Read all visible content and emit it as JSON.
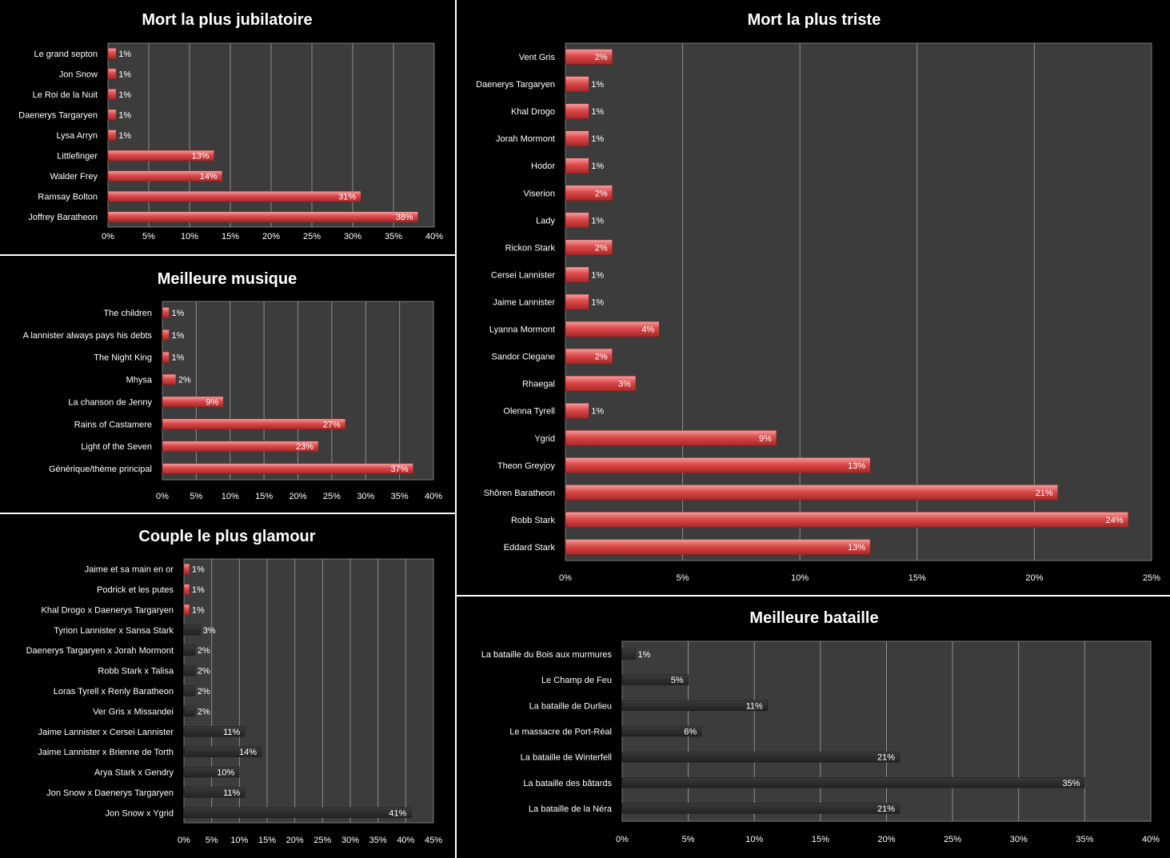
{
  "chart_data": [
    {
      "id": "jubilatoire",
      "type": "bar",
      "orientation": "horizontal",
      "title": "Mort la plus jubilatoire",
      "categories": [
        "Le grand septon",
        "Jon Snow",
        "Le Roi de la Nuit",
        "Daenerys Targaryen",
        "Lysa Arryn",
        "Littlefinger",
        "Walder Frey",
        "Ramsay  Bolton",
        "Joffrey Baratheon"
      ],
      "values": [
        1,
        1,
        1,
        1,
        1,
        13,
        14,
        31,
        38
      ],
      "labels": [
        "1%",
        "1%",
        "1%",
        "1%",
        "1%",
        "13%",
        "14%",
        "31%",
        "38%"
      ],
      "xlim": [
        0,
        40
      ],
      "ticks": [
        "0%",
        "5%",
        "10%",
        "15%",
        "20%",
        "25%",
        "30%",
        "35%",
        "40%"
      ],
      "bar_color": "#d94b4b",
      "grid": true,
      "legend": "none"
    },
    {
      "id": "triste",
      "type": "bar",
      "orientation": "horizontal",
      "title": "Mort la plus triste",
      "categories": [
        "Vent Gris",
        "Daenerys Targaryen",
        "Khal Drogo",
        "Jorah Mormont",
        "Hodor",
        "Viserion",
        "Lady",
        "Rickon Stark",
        "Cersei Lannister",
        "Jaime Lannister",
        "Lyanna Mormont",
        "Sandor Clegane",
        "Rhaegal",
        "Olenna Tyrell",
        "Ygrid",
        "Theon Greyjoy",
        "Shôren Baratheon",
        "Robb Stark",
        "Eddard Stark"
      ],
      "values": [
        2,
        1,
        1,
        1,
        1,
        2,
        1,
        2,
        1,
        1,
        4,
        2,
        3,
        1,
        9,
        13,
        21,
        24,
        13
      ],
      "labels": [
        "2%",
        "1%",
        "1%",
        "1%",
        "1%",
        "2%",
        "1%",
        "2%",
        "1%",
        "1%",
        "4%",
        "2%",
        "3%",
        "1%",
        "9%",
        "13%",
        "21%",
        "24%",
        "13%"
      ],
      "xlim": [
        0,
        25
      ],
      "ticks": [
        "0%",
        "5%",
        "10%",
        "15%",
        "20%",
        "25%"
      ],
      "bar_color": "#d94b4b",
      "grid": true,
      "legend": "none"
    },
    {
      "id": "musique",
      "type": "bar",
      "orientation": "horizontal",
      "title": "Meilleure musique",
      "categories": [
        "The children",
        "A lannister always pays his debts",
        "The Night  King",
        "Mhysa",
        "La chanson de Jenny",
        "Rains of Castamere",
        "Light of the Seven",
        "Générique/thème principal"
      ],
      "values": [
        1,
        1,
        1,
        2,
        9,
        27,
        23,
        37
      ],
      "labels": [
        "1%",
        "1%",
        "1%",
        "2%",
        "9%",
        "27%",
        "23%",
        "37%"
      ],
      "xlim": [
        0,
        40
      ],
      "ticks": [
        "0%",
        "5%",
        "10%",
        "15%",
        "20%",
        "25%",
        "30%",
        "35%",
        "40%"
      ],
      "bar_color": "#d94b4b",
      "grid": true,
      "legend": "none"
    },
    {
      "id": "glamour",
      "type": "bar",
      "orientation": "horizontal",
      "title": "Couple le plus glamour",
      "categories": [
        "Jaime et sa main en or",
        "Podrick et les putes",
        "Khal Drogo x Daenerys Targaryen",
        "Tyrion Lannister x Sansa Stark",
        "Daenerys Targaryen x Jorah Mormont",
        "Robb Stark x Talisa",
        "Loras Tyrell x Renly Baratheon",
        "Ver Gris x Missandei",
        "Jaime Lannister x Cersei Lannister",
        "Jaime Lannister x Brienne de Torth",
        "Arya Stark x Gendry",
        "Jon Snow x Daenerys Targaryen",
        "Jon Snow x Ygrid"
      ],
      "values": [
        1,
        1,
        1,
        3,
        2,
        2,
        2,
        2,
        11,
        14,
        10,
        11,
        41
      ],
      "labels": [
        "1%",
        "1%",
        "1%",
        "3%",
        "2%",
        "2%",
        "2%",
        "2%",
        "11%",
        "14%",
        "10%",
        "11%",
        "41%"
      ],
      "colors": [
        "#d94b4b",
        "#d94b4b",
        "#d94b4b",
        "#2c2c2c",
        "#2c2c2c",
        "#2c2c2c",
        "#2c2c2c",
        "#2c2c2c",
        "#2c2c2c",
        "#2c2c2c",
        "#2c2c2c",
        "#2c2c2c",
        "#2c2c2c"
      ],
      "xlim": [
        0,
        45
      ],
      "ticks": [
        "0%",
        "5%",
        "10%",
        "15%",
        "20%",
        "25%",
        "30%",
        "35%",
        "40%",
        "45%"
      ],
      "grid": true,
      "legend": "none"
    },
    {
      "id": "bataille",
      "type": "bar",
      "orientation": "horizontal",
      "title": "Meilleure bataille",
      "categories": [
        "La bataille du Bois aux murmures",
        "Le Champ de Feu",
        "La bataille  de Durlieu",
        "Le massacre de Port-Réal",
        "La bataille  de Winterfell",
        "La bataille des bâtards",
        "La bataille  de la Néra"
      ],
      "values": [
        1,
        5,
        11,
        6,
        21,
        35,
        21
      ],
      "labels": [
        "1%",
        "5%",
        "11%",
        "6%",
        "21%",
        "35%",
        "21%"
      ],
      "xlim": [
        0,
        40
      ],
      "ticks": [
        "0%",
        "5%",
        "10%",
        "15%",
        "20%",
        "25%",
        "30%",
        "35%",
        "40%"
      ],
      "bar_color": "#2c2c2c",
      "grid": true,
      "legend": "none"
    }
  ]
}
